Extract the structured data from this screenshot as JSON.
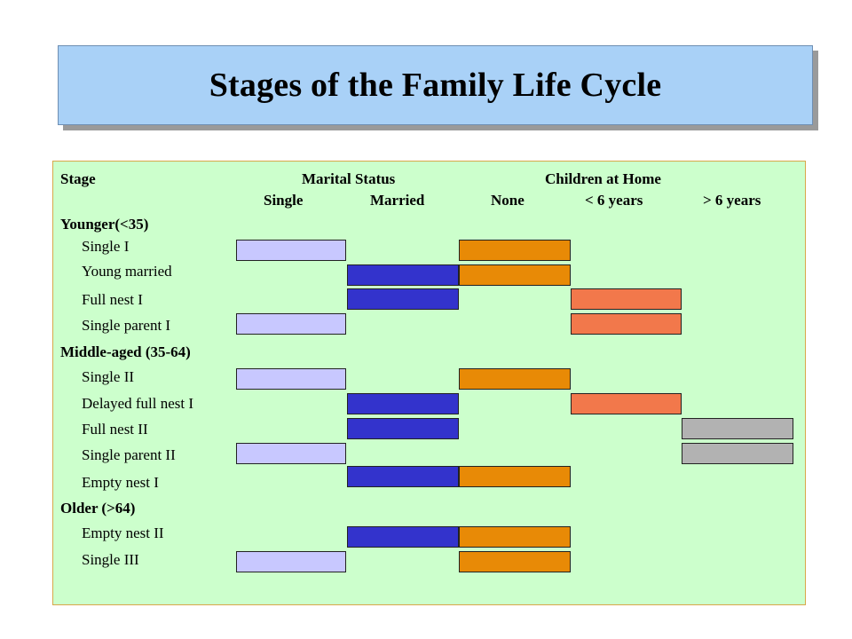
{
  "title": "Stages of the Family Life Cycle",
  "header": {
    "stage": "Stage",
    "marital_status": "Marital Status",
    "children_at_home": "Children at Home",
    "single": "Single",
    "married": "Married",
    "none": "None",
    "under6": "< 6 years",
    "over6": "> 6 years"
  },
  "groups": {
    "younger": "Younger(<35)",
    "middle": "Middle-aged (35-64)",
    "older": "Older (>64)"
  },
  "rows": [
    {
      "label": "Single I",
      "single": true,
      "married": false,
      "none": true,
      "under6": false,
      "over6": false
    },
    {
      "label": "Young married",
      "single": false,
      "married": true,
      "none": true,
      "under6": false,
      "over6": false
    },
    {
      "label": "Full nest I",
      "single": false,
      "married": true,
      "none": false,
      "under6": true,
      "over6": false
    },
    {
      "label": "Single parent I",
      "single": true,
      "married": false,
      "none": false,
      "under6": true,
      "over6": false
    },
    {
      "label": "Single II",
      "single": true,
      "married": false,
      "none": true,
      "under6": false,
      "over6": false
    },
    {
      "label": "Delayed full nest I",
      "single": false,
      "married": true,
      "none": false,
      "under6": true,
      "over6": false
    },
    {
      "label": "Full nest II",
      "single": false,
      "married": true,
      "none": false,
      "under6": false,
      "over6": true
    },
    {
      "label": "Single parent II",
      "single": true,
      "married": false,
      "none": false,
      "under6": false,
      "over6": true
    },
    {
      "label": "Empty nest I",
      "single": false,
      "married": true,
      "none": true,
      "under6": false,
      "over6": false
    },
    {
      "label": "Empty nest II",
      "single": false,
      "married": true,
      "none": true,
      "under6": false,
      "over6": false
    },
    {
      "label": "Single III",
      "single": true,
      "married": false,
      "none": true,
      "under6": false,
      "over6": false
    }
  ],
  "colors": {
    "single": "#c8c8ff",
    "married": "#3333cc",
    "none": "#e88a06",
    "under6": "#f2784b",
    "over6": "#b2b2b2",
    "panel_bg": "#ccffcc",
    "title_bg": "#a9d1f7"
  }
}
